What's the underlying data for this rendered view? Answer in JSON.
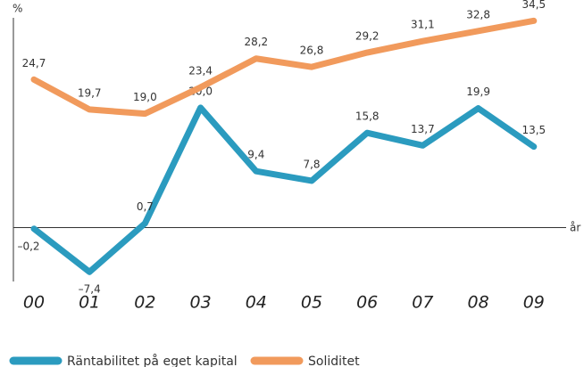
{
  "chart_data": {
    "type": "line",
    "y_label": "%",
    "x_label": "år",
    "categories": [
      "00",
      "01",
      "02",
      "03",
      "04",
      "05",
      "06",
      "07",
      "08",
      "09"
    ],
    "ylim": [
      -9,
      35
    ],
    "series": [
      {
        "name": "Räntabilitet på eget kapital",
        "color": "#2b9bbf",
        "values": [
          -0.2,
          -7.4,
          0.7,
          20.0,
          9.4,
          7.8,
          15.8,
          13.7,
          19.9,
          13.5
        ],
        "value_labels": [
          "–0,2",
          "–7,4",
          "0,7",
          "20,0",
          "9,4",
          "7,8",
          "15,8",
          "13,7",
          "19,9",
          "13,5"
        ]
      },
      {
        "name": "Soliditet",
        "color": "#f19a5c",
        "values": [
          24.7,
          19.7,
          19.0,
          23.4,
          28.2,
          26.8,
          29.2,
          31.1,
          32.8,
          34.5
        ],
        "value_labels": [
          "24,7",
          "19,7",
          "19,0",
          "23,4",
          "28,2",
          "26,8",
          "29,2",
          "31,1",
          "32,8",
          "34,5"
        ]
      }
    ]
  }
}
